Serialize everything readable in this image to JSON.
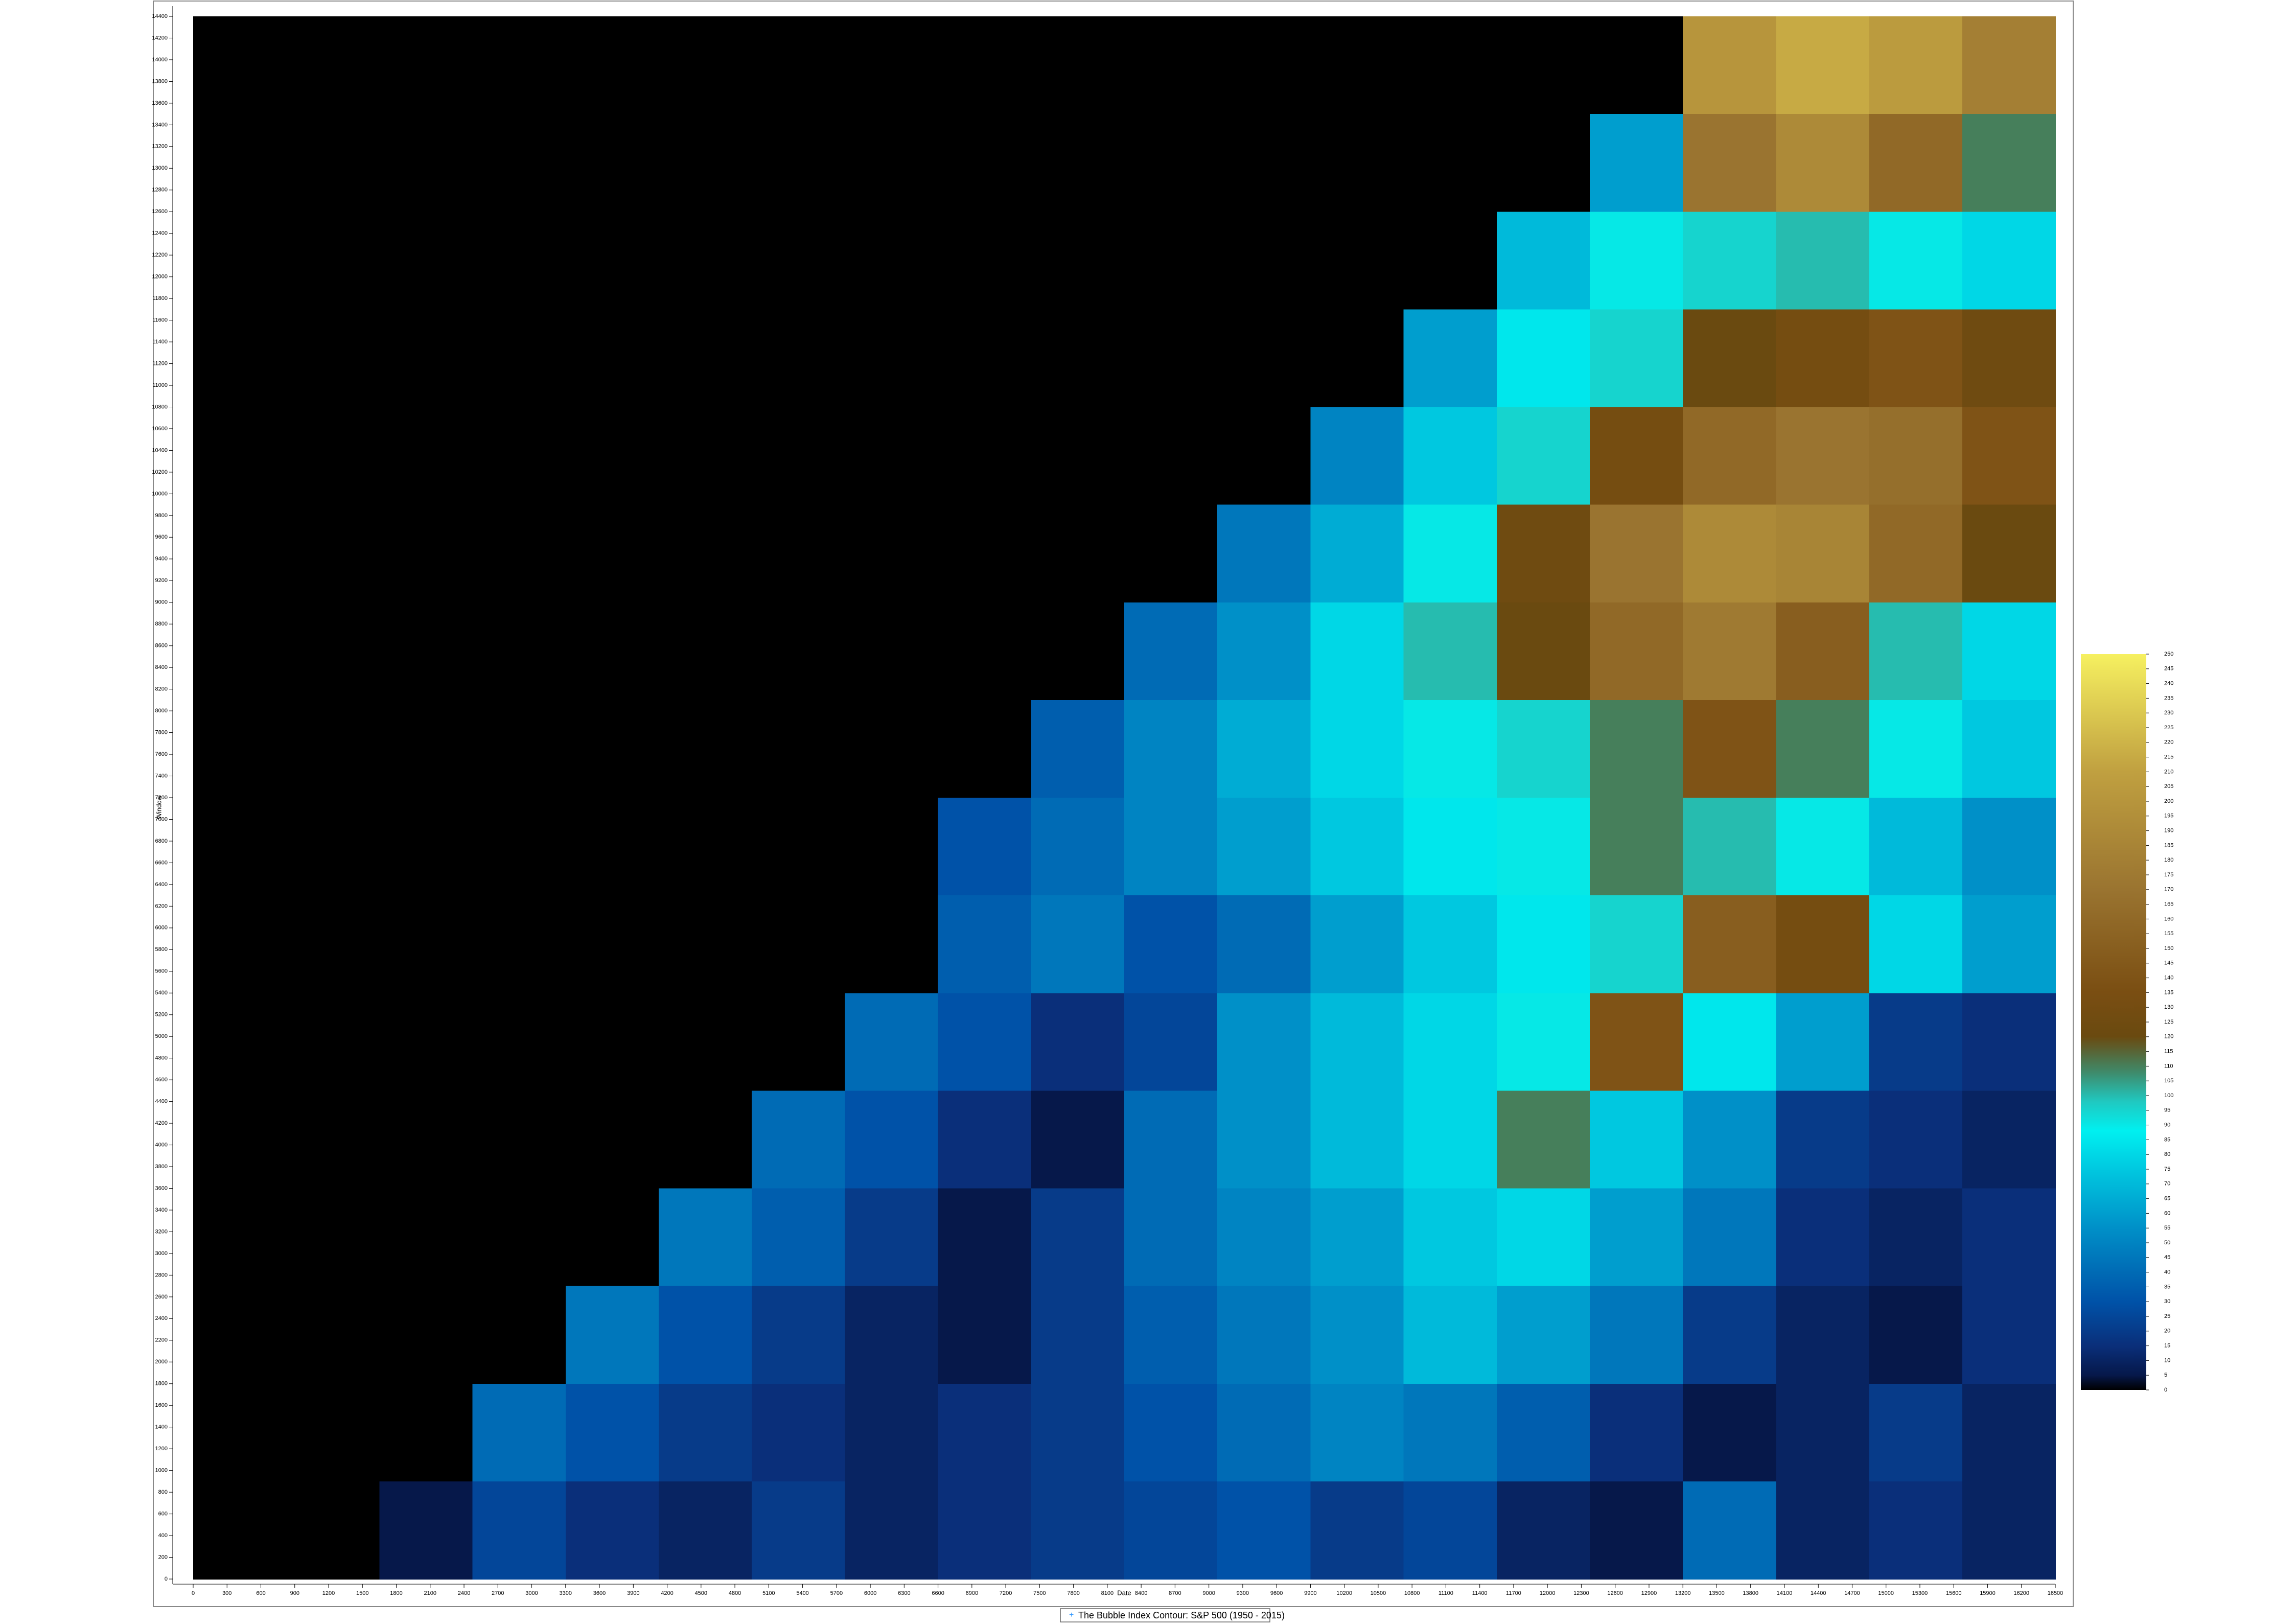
{
  "chart_data": {
    "type": "contour",
    "legend": "The Bubble Index Contour: S&P 500 (1950 - 2015)",
    "x_label": "Date",
    "y_label": "Window",
    "xlim": [
      0,
      16500
    ],
    "ylim": [
      0,
      14400
    ],
    "xticks": [
      0,
      300,
      600,
      900,
      1200,
      1500,
      1800,
      2100,
      2400,
      2700,
      3000,
      3300,
      3600,
      3900,
      4200,
      4500,
      4800,
      5100,
      5400,
      5700,
      6000,
      6300,
      6600,
      6900,
      7200,
      7500,
      7800,
      8100,
      8400,
      8700,
      9000,
      9300,
      9600,
      9900,
      10200,
      10500,
      10800,
      11100,
      11400,
      11700,
      12000,
      12300,
      12600,
      12900,
      13200,
      13500,
      13800,
      14100,
      14400,
      14700,
      15000,
      15300,
      15600,
      15900,
      16200,
      16500
    ],
    "yticks": [
      0,
      200,
      400,
      600,
      800,
      1000,
      1200,
      1400,
      1600,
      1800,
      2000,
      2200,
      2400,
      2600,
      2800,
      3000,
      3200,
      3400,
      3600,
      3800,
      4000,
      4200,
      4400,
      4600,
      4800,
      5000,
      5200,
      5400,
      5600,
      5800,
      6000,
      6200,
      6400,
      6600,
      6800,
      7000,
      7200,
      7400,
      7600,
      7800,
      8000,
      8200,
      8400,
      8600,
      8800,
      9000,
      9200,
      9400,
      9600,
      9800,
      10000,
      10200,
      10400,
      10600,
      10800,
      11000,
      11200,
      11400,
      11600,
      11800,
      12000,
      12200,
      12400,
      12600,
      12800,
      13000,
      13200,
      13400,
      13600,
      13800,
      14000,
      14200,
      14400
    ],
    "zlim": [
      0,
      250
    ],
    "zticks": [
      0,
      5,
      10,
      15,
      20,
      25,
      30,
      35,
      40,
      45,
      50,
      55,
      60,
      65,
      70,
      75,
      80,
      85,
      90,
      95,
      100,
      105,
      110,
      115,
      120,
      125,
      130,
      135,
      140,
      145,
      150,
      155,
      160,
      165,
      170,
      175,
      180,
      185,
      190,
      195,
      200,
      205,
      210,
      215,
      220,
      225,
      230,
      235,
      240,
      245,
      250
    ],
    "colorscale": [
      [
        0,
        "#000000"
      ],
      [
        5,
        "#06184a"
      ],
      [
        15,
        "#0a2f7a"
      ],
      [
        30,
        "#0052a8"
      ],
      [
        55,
        "#0090c8"
      ],
      [
        75,
        "#00c8e0"
      ],
      [
        88,
        "#00f0f0"
      ],
      [
        98,
        "#20c8c0"
      ],
      [
        108,
        "#3f8a6a"
      ],
      [
        120,
        "#6a4a10"
      ],
      [
        135,
        "#7a4e12"
      ],
      [
        170,
        "#9a7430"
      ],
      [
        210,
        "#c0a040"
      ],
      [
        250,
        "#f6f060"
      ]
    ],
    "z": [
      [
        0,
        0,
        0,
        0,
        0,
        0,
        0,
        0,
        0,
        0,
        0,
        0,
        0,
        0,
        0,
        0,
        200,
        215,
        205,
        180
      ],
      [
        0,
        0,
        0,
        0,
        0,
        0,
        0,
        0,
        0,
        0,
        0,
        0,
        0,
        0,
        0,
        60,
        170,
        190,
        160,
        110
      ],
      [
        0,
        0,
        0,
        0,
        0,
        0,
        0,
        0,
        0,
        0,
        0,
        0,
        0,
        0,
        70,
        90,
        95,
        100,
        90,
        80
      ],
      [
        0,
        0,
        0,
        0,
        0,
        0,
        0,
        0,
        0,
        0,
        0,
        0,
        0,
        60,
        85,
        95,
        120,
        130,
        140,
        125
      ],
      [
        0,
        0,
        0,
        0,
        0,
        0,
        0,
        0,
        0,
        0,
        0,
        0,
        50,
        75,
        95,
        130,
        160,
        170,
        165,
        140
      ],
      [
        0,
        0,
        0,
        0,
        0,
        0,
        0,
        0,
        0,
        0,
        0,
        45,
        65,
        90,
        125,
        170,
        190,
        185,
        160,
        120
      ],
      [
        0,
        0,
        0,
        0,
        0,
        0,
        0,
        0,
        0,
        0,
        40,
        55,
        80,
        100,
        120,
        160,
        175,
        150,
        100,
        80
      ],
      [
        0,
        0,
        0,
        0,
        0,
        0,
        0,
        0,
        0,
        35,
        50,
        65,
        80,
        90,
        95,
        110,
        140,
        110,
        90,
        75
      ],
      [
        0,
        0,
        0,
        0,
        0,
        0,
        0,
        0,
        30,
        40,
        50,
        60,
        75,
        85,
        90,
        110,
        100,
        90,
        70,
        55
      ],
      [
        0,
        0,
        0,
        0,
        0,
        0,
        0,
        0,
        35,
        45,
        30,
        40,
        60,
        75,
        85,
        95,
        150,
        130,
        80,
        60
      ],
      [
        0,
        0,
        0,
        0,
        0,
        0,
        0,
        40,
        30,
        15,
        25,
        55,
        70,
        80,
        90,
        140,
        85,
        60,
        20,
        15
      ],
      [
        0,
        0,
        0,
        0,
        0,
        0,
        40,
        30,
        15,
        5,
        40,
        55,
        70,
        80,
        110,
        75,
        55,
        20,
        15,
        10
      ],
      [
        0,
        0,
        0,
        0,
        0,
        45,
        35,
        20,
        5,
        20,
        40,
        50,
        60,
        75,
        80,
        60,
        45,
        15,
        10,
        15
      ],
      [
        0,
        0,
        0,
        0,
        45,
        30,
        20,
        10,
        5,
        20,
        35,
        45,
        55,
        70,
        60,
        45,
        20,
        10,
        5,
        15
      ],
      [
        0,
        0,
        0,
        40,
        30,
        20,
        15,
        10,
        15,
        20,
        30,
        40,
        50,
        45,
        35,
        15,
        5,
        10,
        20,
        10
      ],
      [
        0,
        0,
        5,
        25,
        15,
        10,
        20,
        10,
        15,
        20,
        25,
        30,
        20,
        25,
        10,
        5,
        40,
        10,
        15,
        10
      ]
    ]
  }
}
